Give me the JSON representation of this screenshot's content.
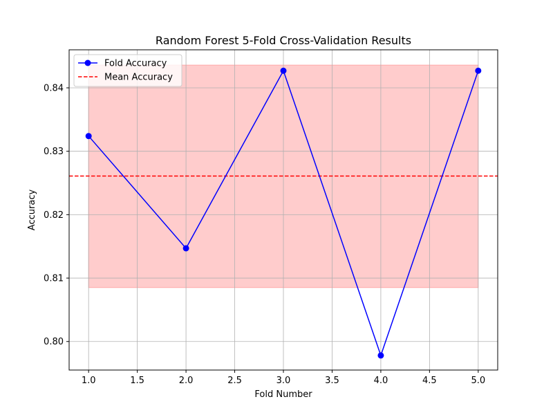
{
  "chart_data": {
    "type": "line",
    "title": "Random Forest 5-Fold Cross-Validation Results",
    "xlabel": "Fold Number",
    "ylabel": "Accuracy",
    "xlim": [
      0.8,
      5.2
    ],
    "ylim": [
      0.7955,
      0.846
    ],
    "xticks": [
      1.0,
      1.5,
      2.0,
      2.5,
      3.0,
      3.5,
      4.0,
      4.5,
      5.0
    ],
    "xtick_labels": [
      "1.0",
      "1.5",
      "2.0",
      "2.5",
      "3.0",
      "3.5",
      "4.0",
      "4.5",
      "5.0"
    ],
    "yticks": [
      0.8,
      0.81,
      0.82,
      0.83,
      0.84
    ],
    "ytick_labels": [
      "0.80",
      "0.81",
      "0.82",
      "0.83",
      "0.84"
    ],
    "grid": true,
    "legend_position": "top-left",
    "x": [
      1,
      2,
      3,
      4,
      5
    ],
    "series": [
      {
        "name": "Fold Accuracy",
        "values": [
          0.8324,
          0.8147,
          0.8427,
          0.7978,
          0.8427
        ],
        "color": "#0000ff",
        "style": "solid-line-with-circle-markers"
      }
    ],
    "mean": {
      "name": "Mean Accuracy",
      "value": 0.8261,
      "color": "#ff0000",
      "style": "dashed"
    },
    "std_band": {
      "lower": 0.8085,
      "upper": 0.8436,
      "x_range": [
        1,
        5
      ],
      "color": "#ff0000",
      "alpha": 0.2
    }
  }
}
